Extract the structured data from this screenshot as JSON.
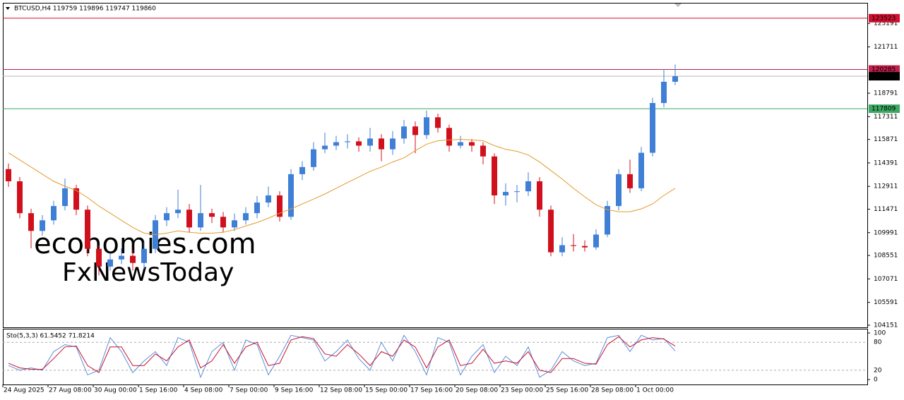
{
  "chart_data": [
    {
      "type": "candlestick",
      "title": "BTCUSD,H4  119759 119896 119747 119860",
      "watermark": [
        "economies.com",
        "FxNewsToday"
      ],
      "up_color": "#3f7fd6",
      "down_color": "#d0101c",
      "x": [
        2,
        6,
        10,
        14,
        18,
        22,
        26,
        30,
        34,
        38,
        42,
        46,
        50,
        54,
        58,
        62,
        66,
        70,
        74,
        78,
        82,
        86,
        90,
        94,
        98,
        102,
        106,
        110,
        114,
        118,
        122,
        126,
        130,
        134,
        138,
        142,
        146,
        150,
        154,
        158,
        162,
        166,
        170,
        174,
        178,
        182,
        186,
        190,
        194,
        198,
        202,
        206,
        210,
        214,
        218,
        222,
        226,
        230,
        234,
        238
      ],
      "open": [
        114000,
        113230,
        111220,
        110100,
        110770,
        111670,
        112790,
        111440,
        108970,
        107850,
        108300,
        108530,
        108080,
        108970,
        110770,
        111220,
        111440,
        110320,
        111220,
        110990,
        110320,
        110770,
        111220,
        111890,
        112340,
        110990,
        113680,
        114130,
        115250,
        115480,
        115700,
        115750,
        115480,
        115930,
        115250,
        115930,
        116690,
        116150,
        117270,
        116600,
        115480,
        115700,
        115480,
        114800,
        112340,
        112560,
        112600,
        113230,
        111440,
        108750,
        109200,
        109150,
        109060,
        109870,
        111670,
        113680,
        112790,
        115030,
        118170,
        119510
      ],
      "high": [
        114350,
        113500,
        111500,
        111100,
        112000,
        113400,
        113000,
        111700,
        109200,
        108700,
        109000,
        108900,
        109400,
        111100,
        111600,
        112700,
        111800,
        113000,
        111500,
        111300,
        111200,
        111600,
        112300,
        112900,
        112600,
        114000,
        114500,
        115700,
        116300,
        116100,
        116200,
        116000,
        116600,
        116200,
        116400,
        117100,
        117000,
        117700,
        117500,
        116800,
        116100,
        115900,
        115700,
        115000,
        113100,
        113000,
        113800,
        113500,
        111700,
        109700,
        109900,
        109500,
        110200,
        112000,
        114000,
        114600,
        115400,
        118500,
        120300,
        120600
      ],
      "low": [
        112880,
        110900,
        109000,
        109800,
        110500,
        111400,
        111100,
        108500,
        107300,
        107600,
        108000,
        107600,
        107700,
        108700,
        110400,
        110900,
        110000,
        110100,
        110600,
        110000,
        110100,
        110500,
        110900,
        111600,
        110700,
        110800,
        113300,
        113900,
        115000,
        115200,
        115300,
        115100,
        115100,
        114500,
        114900,
        115600,
        115000,
        115900,
        116300,
        115100,
        115300,
        115100,
        114300,
        111800,
        111700,
        111900,
        112300,
        111000,
        108500,
        108500,
        108800,
        108800,
        108900,
        109700,
        111400,
        112500,
        112600,
        114800,
        117900,
        119300
      ],
      "close": [
        113230,
        111220,
        110100,
        110770,
        111670,
        112790,
        111440,
        108970,
        107850,
        108300,
        108530,
        108080,
        108970,
        110770,
        111220,
        111440,
        110320,
        111220,
        110990,
        110320,
        110770,
        111220,
        111890,
        112340,
        110990,
        113680,
        114130,
        115250,
        115480,
        115700,
        115750,
        115480,
        115930,
        115250,
        115930,
        116690,
        116150,
        117270,
        116600,
        115480,
        115700,
        115480,
        114800,
        112340,
        112560,
        112600,
        113230,
        111440,
        108750,
        109200,
        109150,
        109060,
        109870,
        111670,
        113680,
        112790,
        115030,
        118170,
        119510,
        119860
      ],
      "ma": {
        "color": "#e39a2c",
        "values": [
          115030,
          114580,
          114130,
          113680,
          113230,
          112920,
          112650,
          112200,
          111670,
          111220,
          110770,
          110320,
          109960,
          109870,
          109960,
          110100,
          110010,
          109960,
          109960,
          110010,
          110180,
          110410,
          110630,
          110900,
          111220,
          111490,
          111800,
          112110,
          112430,
          112790,
          113150,
          113500,
          113860,
          114130,
          114450,
          114710,
          115160,
          115570,
          115790,
          115840,
          115880,
          115840,
          115790,
          115480,
          115250,
          115120,
          114890,
          114450,
          113910,
          113370,
          112790,
          112250,
          111750,
          111440,
          111310,
          111310,
          111490,
          111800,
          112340,
          112790
        ]
      },
      "lines": [
        {
          "value": 123523,
          "color": "#d01030"
        },
        {
          "value": 120285,
          "color": "#c0204a"
        },
        {
          "value": 119860,
          "color": "#000000"
        },
        {
          "value": 117809,
          "color": "#3aa860"
        }
      ],
      "ylim": [
        104016,
        124492
      ],
      "yticks": [
        123191,
        121711,
        118791,
        117311,
        115871,
        114391,
        112911,
        111471,
        109991,
        108551,
        107071,
        105591,
        104151
      ],
      "xlim": [
        0,
        306
      ],
      "xticks": [
        {
          "value": 0,
          "label": "24 Aug 2025"
        },
        {
          "value": 16,
          "label": "27 Aug 08:00"
        },
        {
          "value": 32,
          "label": "30 Aug 00:00"
        },
        {
          "value": 48,
          "label": "1 Sep 16:00"
        },
        {
          "value": 64,
          "label": "4 Sep 08:00"
        },
        {
          "value": 80,
          "label": "7 Sep 00:00"
        },
        {
          "value": 96,
          "label": "9 Sep 16:00"
        },
        {
          "value": 112,
          "label": "12 Sep 08:00"
        },
        {
          "value": 128,
          "label": "15 Sep 00:00"
        },
        {
          "value": 144,
          "label": "17 Sep 16:00"
        },
        {
          "value": 160,
          "label": "20 Sep 08:00"
        },
        {
          "value": 176,
          "label": "23 Sep 00:00"
        },
        {
          "value": 192,
          "label": "25 Sep 16:00"
        },
        {
          "value": 208,
          "label": "28 Sep 08:00"
        },
        {
          "value": 224,
          "label": "1 Oct 00:00"
        }
      ]
    },
    {
      "type": "line",
      "title": "Sto(5,3,3) 61.5452 71.8214",
      "x": [
        2,
        6,
        10,
        14,
        18,
        22,
        26,
        30,
        34,
        38,
        42,
        46,
        50,
        54,
        58,
        62,
        66,
        70,
        74,
        78,
        82,
        86,
        90,
        94,
        98,
        102,
        106,
        110,
        114,
        118,
        122,
        126,
        130,
        134,
        138,
        142,
        146,
        150,
        154,
        158,
        162,
        166,
        170,
        174,
        178,
        182,
        186,
        190,
        194,
        198,
        202,
        206,
        210,
        214,
        218,
        222,
        226,
        230,
        234,
        238
      ],
      "series": [
        {
          "color": "#5b8fd9",
          "values": [
            30,
            20,
            25,
            20,
            60,
            75,
            70,
            10,
            20,
            90,
            60,
            15,
            40,
            60,
            30,
            90,
            80,
            5,
            60,
            80,
            20,
            85,
            75,
            10,
            50,
            95,
            90,
            85,
            40,
            60,
            85,
            45,
            20,
            80,
            40,
            95,
            60,
            10,
            90,
            80,
            10,
            50,
            75,
            15,
            50,
            30,
            70,
            5,
            20,
            60,
            40,
            30,
            35,
            90,
            95,
            60,
            95,
            85,
            88,
            61.5452
          ]
        },
        {
          "color": "#c8102e",
          "values": [
            35,
            25,
            22,
            22,
            45,
            70,
            72,
            30,
            15,
            70,
            70,
            30,
            30,
            55,
            40,
            70,
            85,
            25,
            40,
            75,
            35,
            70,
            80,
            30,
            35,
            85,
            92,
            88,
            55,
            50,
            75,
            55,
            30,
            60,
            50,
            85,
            70,
            25,
            70,
            85,
            30,
            35,
            65,
            35,
            40,
            35,
            60,
            20,
            15,
            45,
            45,
            35,
            33,
            75,
            92,
            70,
            85,
            90,
            87,
            71.8214
          ]
        }
      ],
      "ylim": [
        0,
        100
      ],
      "yticks": [
        0,
        20,
        80,
        100
      ]
    }
  ]
}
